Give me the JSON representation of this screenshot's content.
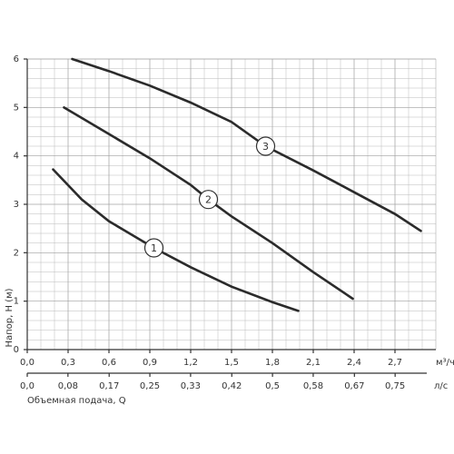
{
  "chart_data": {
    "type": "line",
    "y_label": "Напор, H (м)",
    "x_label": "Объемная подача, Q",
    "x_unit": "м³/ч",
    "x2_unit": "л/с",
    "xlim": [
      0,
      3.0
    ],
    "ylim": [
      0,
      6
    ],
    "x2lim": [
      0,
      0.833
    ],
    "xticks": [
      {
        "value": 0,
        "label": "0,0"
      },
      {
        "value": 0.3,
        "label": "0,3"
      },
      {
        "value": 0.6,
        "label": "0,6"
      },
      {
        "value": 0.9,
        "label": "0,9"
      },
      {
        "value": 1.2,
        "label": "1,2"
      },
      {
        "value": 1.5,
        "label": "1,5"
      },
      {
        "value": 1.8,
        "label": "1,8"
      },
      {
        "value": 2.1,
        "label": "2,1"
      },
      {
        "value": 2.4,
        "label": "2,4"
      },
      {
        "value": 2.7,
        "label": "2,7"
      }
    ],
    "x2ticks": [
      {
        "value": 0,
        "label": "0,0"
      },
      {
        "value": 0.083,
        "label": "0,08"
      },
      {
        "value": 0.167,
        "label": "0,17"
      },
      {
        "value": 0.25,
        "label": "0,25"
      },
      {
        "value": 0.333,
        "label": "0,33"
      },
      {
        "value": 0.417,
        "label": "0,42"
      },
      {
        "value": 0.5,
        "label": "0,5"
      },
      {
        "value": 0.583,
        "label": "0,58"
      },
      {
        "value": 0.667,
        "label": "0,67"
      },
      {
        "value": 0.75,
        "label": "0,75"
      }
    ],
    "yticks": [
      0,
      1,
      2,
      3,
      4,
      5,
      6
    ],
    "grid": true,
    "series": [
      {
        "name": "1",
        "color": "#2b2b2b",
        "x": [
          0.19,
          0.4,
          0.6,
          0.93,
          1.2,
          1.5,
          1.8,
          1.99
        ],
        "values": [
          3.72,
          3.1,
          2.65,
          2.1,
          1.7,
          1.3,
          0.98,
          0.8
        ]
      },
      {
        "name": "2",
        "color": "#2b2b2b",
        "x": [
          0.27,
          0.6,
          0.9,
          1.2,
          1.33,
          1.5,
          1.8,
          2.1,
          2.39
        ],
        "values": [
          5.0,
          4.45,
          3.95,
          3.4,
          3.1,
          2.75,
          2.2,
          1.6,
          1.05
        ]
      },
      {
        "name": "3",
        "color": "#2b2b2b",
        "x": [
          0.33,
          0.6,
          0.9,
          1.2,
          1.5,
          1.75,
          2.1,
          2.4,
          2.7,
          2.89
        ],
        "values": [
          6.0,
          5.75,
          5.45,
          5.1,
          4.7,
          4.2,
          3.7,
          3.25,
          2.8,
          2.45
        ]
      }
    ]
  }
}
